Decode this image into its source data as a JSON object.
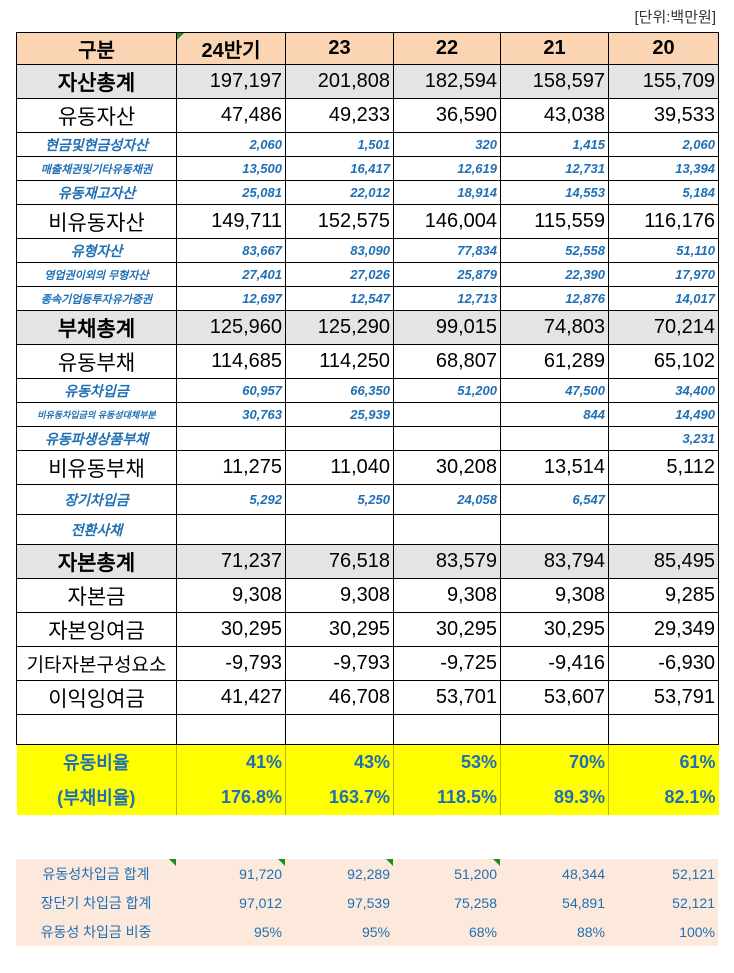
{
  "unit_label": "[단위:백만원]",
  "header": [
    "구분",
    "24반기",
    "23",
    "22",
    "21",
    "20"
  ],
  "rows": [
    {
      "label": "자산총계",
      "values": [
        "197,197",
        "201,808",
        "182,594",
        "158,597",
        "155,709"
      ]
    },
    {
      "label": "유동자산",
      "values": [
        "47,486",
        "49,233",
        "36,590",
        "43,038",
        "39,533"
      ]
    },
    {
      "label": "현금및현금성자산",
      "values": [
        "2,060",
        "1,501",
        "320",
        "1,415",
        "2,060"
      ]
    },
    {
      "label": "매출채권및기타유동채권",
      "values": [
        "13,500",
        "16,417",
        "12,619",
        "12,731",
        "13,394"
      ]
    },
    {
      "label": "유동재고자산",
      "values": [
        "25,081",
        "22,012",
        "18,914",
        "14,553",
        "5,184"
      ]
    },
    {
      "label": "비유동자산",
      "values": [
        "149,711",
        "152,575",
        "146,004",
        "115,559",
        "116,176"
      ]
    },
    {
      "label": "유형자산",
      "values": [
        "83,667",
        "83,090",
        "77,834",
        "52,558",
        "51,110"
      ]
    },
    {
      "label": "영업권이외의 무형자산",
      "values": [
        "27,401",
        "27,026",
        "25,879",
        "22,390",
        "17,970"
      ]
    },
    {
      "label": "종속기업등투자유가증권",
      "values": [
        "12,697",
        "12,547",
        "12,713",
        "12,876",
        "14,017"
      ]
    },
    {
      "label": "부채총계",
      "values": [
        "125,960",
        "125,290",
        "99,015",
        "74,803",
        "70,214"
      ]
    },
    {
      "label": "유동부채",
      "values": [
        "114,685",
        "114,250",
        "68,807",
        "61,289",
        "65,102"
      ]
    },
    {
      "label": "유동차입금",
      "values": [
        "60,957",
        "66,350",
        "51,200",
        "47,500",
        "34,400"
      ]
    },
    {
      "label": "비유동차입금의 유동성대체부분",
      "values": [
        "30,763",
        "25,939",
        "",
        "844",
        "14,490"
      ]
    },
    {
      "label": "유동파생상품부채",
      "values": [
        "",
        "",
        "",
        "",
        "3,231"
      ]
    },
    {
      "label": "비유동부채",
      "values": [
        "11,275",
        "11,040",
        "30,208",
        "13,514",
        "5,112"
      ]
    },
    {
      "label": "장기차입금",
      "values": [
        "5,292",
        "5,250",
        "24,058",
        "6,547",
        ""
      ]
    },
    {
      "label": "전환사채",
      "values": [
        "",
        "",
        "",
        "",
        ""
      ]
    },
    {
      "label": "자본총계",
      "values": [
        "71,237",
        "76,518",
        "83,579",
        "83,794",
        "85,495"
      ]
    },
    {
      "label": "자본금",
      "values": [
        "9,308",
        "9,308",
        "9,308",
        "9,308",
        "9,285"
      ]
    },
    {
      "label": "자본잉여금",
      "values": [
        "30,295",
        "30,295",
        "30,295",
        "30,295",
        "29,349"
      ]
    },
    {
      "label": "기타자본구성요소",
      "values": [
        "-9,793",
        "-9,793",
        "-9,725",
        "-9,416",
        "-6,930"
      ]
    },
    {
      "label": "이익잉여금",
      "values": [
        "41,427",
        "46,708",
        "53,701",
        "53,607",
        "53,791"
      ]
    }
  ],
  "ratios": [
    {
      "label": "유동비율",
      "values": [
        "41%",
        "43%",
        "53%",
        "70%",
        "61%"
      ]
    },
    {
      "label": "(부채비율)",
      "values": [
        "176.8%",
        "163.7%",
        "118.5%",
        "89.3%",
        "82.1%"
      ]
    }
  ],
  "bottom": [
    {
      "label": "유동성차입금 합계",
      "values": [
        "91,720",
        "92,289",
        "51,200",
        "48,344",
        "52,121"
      ]
    },
    {
      "label": "장단기 차입금 합계",
      "values": [
        "97,012",
        "97,539",
        "75,258",
        "54,891",
        "52,121"
      ]
    },
    {
      "label": "유동성 차입금 비중",
      "values": [
        "95%",
        "95%",
        "68%",
        "88%",
        "100%"
      ]
    }
  ]
}
